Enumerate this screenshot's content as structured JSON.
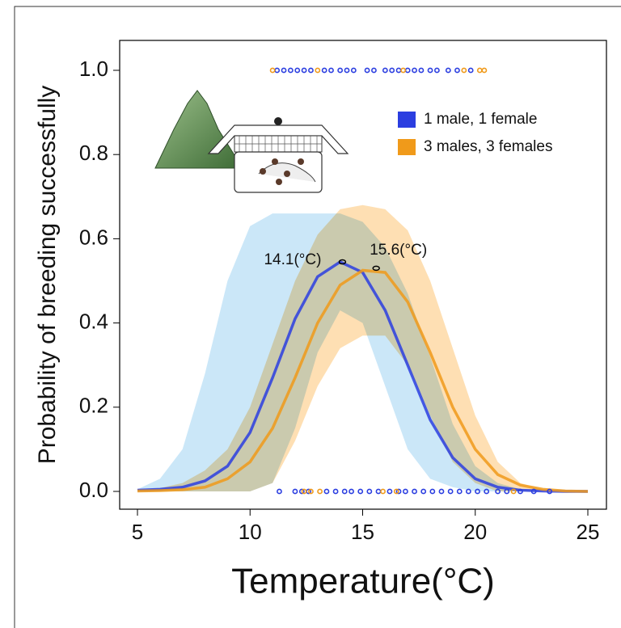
{
  "chart_data": {
    "type": "line",
    "x_label": "Temperature(°C)",
    "y_label": "Probability of breeding successfully",
    "xlim": [
      5,
      25
    ],
    "ylim": [
      0,
      1
    ],
    "xticks": [
      5,
      10,
      15,
      20,
      25
    ],
    "yticks": [
      {
        "value": 0,
        "label": "0.0"
      },
      {
        "value": 0.2,
        "label": "0.2"
      },
      {
        "value": 0.4,
        "label": "0.4"
      },
      {
        "value": 0.6,
        "label": "0.6"
      },
      {
        "value": 0.8,
        "label": "0.8"
      },
      {
        "value": 1,
        "label": "1.0"
      }
    ],
    "x": [
      5,
      6,
      7,
      8,
      9,
      10,
      11,
      12,
      13,
      14,
      15,
      16,
      17,
      18,
      19,
      20,
      21,
      22,
      23,
      24,
      25
    ],
    "legend_position": "upper right",
    "series": [
      {
        "name": "1 male, 1 female",
        "color": "#2b3ee0",
        "band_color": "#b9dff5",
        "values": [
          0.003,
          0.005,
          0.01,
          0.025,
          0.06,
          0.14,
          0.27,
          0.41,
          0.51,
          0.545,
          0.52,
          0.43,
          0.3,
          0.17,
          0.08,
          0.03,
          0.01,
          0.003,
          0.001,
          0,
          0
        ],
        "upper": [
          0.005,
          0.03,
          0.1,
          0.28,
          0.5,
          0.63,
          0.66,
          0.66,
          0.66,
          0.66,
          0.64,
          0.58,
          0.47,
          0.32,
          0.16,
          0.06,
          0.02,
          0.005,
          0,
          0,
          0
        ],
        "lower": [
          0,
          0,
          0,
          0,
          0,
          0,
          0.02,
          0.15,
          0.33,
          0.43,
          0.4,
          0.25,
          0.1,
          0.03,
          0.01,
          0,
          0,
          0,
          0,
          0,
          0
        ],
        "rug_success": [
          11.2,
          11.5,
          11.8,
          12.1,
          12.4,
          12.7,
          13.3,
          13.6,
          14.0,
          14.3,
          14.6,
          15.2,
          15.5,
          16.0,
          16.3,
          16.6,
          17.0,
          17.3,
          17.6,
          18.0,
          18.3,
          18.8,
          19.2,
          19.8
        ],
        "rug_failure": [
          11.3,
          12.0,
          12.3,
          12.6,
          13.4,
          13.8,
          14.2,
          14.5,
          14.9,
          15.3,
          15.7,
          16.2,
          16.6,
          16.9,
          17.3,
          17.7,
          18.1,
          18.5,
          18.9,
          19.3,
          19.7,
          20.1,
          20.5,
          21.0,
          21.4,
          22.0,
          22.6,
          23.3
        ]
      },
      {
        "name": "3 males, 3 females",
        "color": "#f09a1a",
        "band_color": "#fdd49a",
        "values": [
          0.001,
          0.002,
          0.004,
          0.01,
          0.03,
          0.07,
          0.15,
          0.27,
          0.4,
          0.49,
          0.525,
          0.52,
          0.45,
          0.33,
          0.2,
          0.1,
          0.04,
          0.015,
          0.005,
          0.001,
          0
        ],
        "upper": [
          0.002,
          0.008,
          0.02,
          0.05,
          0.1,
          0.2,
          0.35,
          0.5,
          0.61,
          0.67,
          0.68,
          0.67,
          0.62,
          0.5,
          0.34,
          0.18,
          0.07,
          0.02,
          0.005,
          0,
          0
        ],
        "lower": [
          0,
          0,
          0,
          0,
          0,
          0,
          0.02,
          0.12,
          0.25,
          0.34,
          0.37,
          0.37,
          0.3,
          0.18,
          0.07,
          0.02,
          0,
          0,
          0,
          0,
          0
        ],
        "rug_success": [
          11.0,
          13.0,
          16.8,
          19.5,
          20.2,
          20.4
        ],
        "rug_failure": [
          12.4,
          12.7,
          13.1,
          15.9,
          16.5,
          21.7
        ]
      }
    ],
    "annotations": [
      {
        "text": "14.1(°C)",
        "x": 14.1,
        "y": 0.545
      },
      {
        "text": "15.6(°C)",
        "x": 15.6,
        "y": 0.53
      }
    ]
  }
}
